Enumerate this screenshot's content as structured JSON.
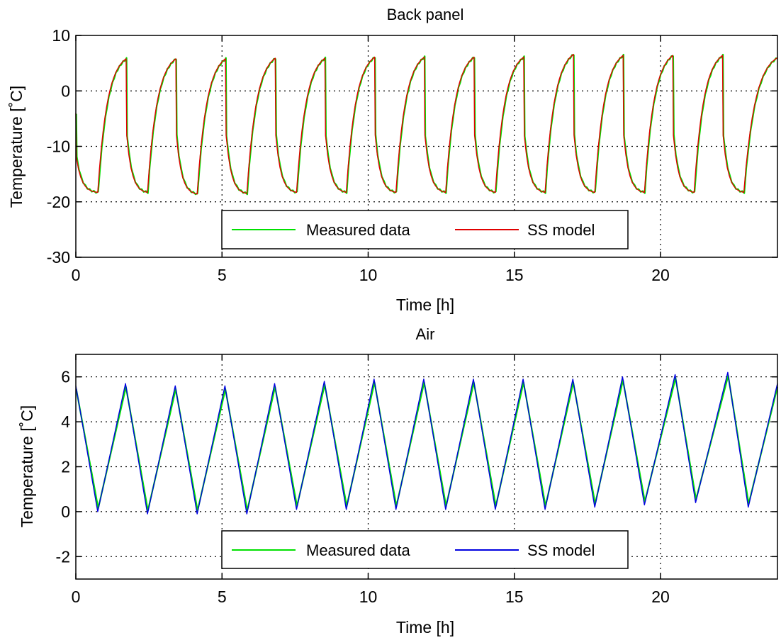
{
  "chart_data": [
    {
      "type": "line",
      "title": "Back panel",
      "xlabel": "Time [h]",
      "ylabel": "Temperature [˚C]",
      "xlim": [
        0,
        24
      ],
      "ylim": [
        -30,
        10
      ],
      "xticks": [
        "0",
        "5",
        "10",
        "15",
        "20"
      ],
      "yticks": [
        "10",
        "0",
        "-10",
        "-20",
        "-30"
      ],
      "grid": true,
      "legend_position": "bottom",
      "shape": "sawtooth",
      "period_h": 1.7,
      "start_value": -4,
      "cycles": [
        {
          "t_min": 0.75,
          "min": -18.3,
          "t_max": 1.72,
          "max": 5.8
        },
        {
          "t_min": 2.45,
          "min": -18.3,
          "t_max": 3.42,
          "max": 5.8
        },
        {
          "t_min": 4.15,
          "min": -18.6,
          "t_max": 5.12,
          "max": 5.8
        },
        {
          "t_min": 5.85,
          "min": -18.5,
          "t_max": 6.82,
          "max": 5.9
        },
        {
          "t_min": 7.55,
          "min": -18.3,
          "t_max": 8.52,
          "max": 5.9
        },
        {
          "t_min": 9.25,
          "min": -18.3,
          "t_max": 10.22,
          "max": 6.1
        },
        {
          "t_min": 10.95,
          "min": -18.3,
          "t_max": 11.92,
          "max": 6.1
        },
        {
          "t_min": 12.65,
          "min": -18.3,
          "t_max": 13.62,
          "max": 6.1
        },
        {
          "t_min": 14.35,
          "min": -18.3,
          "t_max": 15.32,
          "max": 6.1
        },
        {
          "t_min": 16.05,
          "min": -18.3,
          "t_max": 17.02,
          "max": 6.6
        },
        {
          "t_min": 17.75,
          "min": -18.3,
          "t_max": 18.72,
          "max": 6.4
        },
        {
          "t_min": 19.45,
          "min": -18.3,
          "t_max": 20.42,
          "max": 6.4
        },
        {
          "t_min": 21.15,
          "min": -18.3,
          "t_max": 22.12,
          "max": 6.4
        },
        {
          "t_min": 22.85,
          "min": -18.3,
          "t_max": 24.0,
          "max": 6.0
        }
      ],
      "series": [
        {
          "name": "Measured data",
          "color": "#00e000"
        },
        {
          "name": "SS model",
          "color": "#e00000"
        }
      ]
    },
    {
      "type": "line",
      "title": "Air",
      "xlabel": "Time [h]",
      "ylabel": "Temperature [˚C]",
      "xlim": [
        0,
        24
      ],
      "ylim": [
        -3,
        7
      ],
      "xticks": [
        "0",
        "5",
        "10",
        "15",
        "20"
      ],
      "yticks": [
        "6",
        "4",
        "2",
        "0",
        "-2"
      ],
      "grid": true,
      "legend_position": "bottom",
      "shape": "triangle",
      "period_h": 1.7,
      "start_value": 5.6,
      "peaks": [
        {
          "t_min": 0.75,
          "min": 0.0,
          "t_max": 1.7,
          "max": 5.7
        },
        {
          "t_min": 2.45,
          "min": -0.1,
          "t_max": 3.4,
          "max": 5.6
        },
        {
          "t_min": 4.15,
          "min": -0.1,
          "t_max": 5.1,
          "max": 5.6
        },
        {
          "t_min": 5.85,
          "min": -0.1,
          "t_max": 6.8,
          "max": 5.7
        },
        {
          "t_min": 7.55,
          "min": 0.1,
          "t_max": 8.5,
          "max": 5.8
        },
        {
          "t_min": 9.25,
          "min": 0.1,
          "t_max": 10.2,
          "max": 5.9
        },
        {
          "t_min": 10.95,
          "min": 0.1,
          "t_max": 11.9,
          "max": 5.9
        },
        {
          "t_min": 12.65,
          "min": 0.1,
          "t_max": 13.6,
          "max": 5.9
        },
        {
          "t_min": 14.35,
          "min": 0.1,
          "t_max": 15.3,
          "max": 5.9
        },
        {
          "t_min": 16.05,
          "min": 0.1,
          "t_max": 17.0,
          "max": 5.9
        },
        {
          "t_min": 17.75,
          "min": 0.2,
          "t_max": 18.7,
          "max": 6.0
        },
        {
          "t_min": 19.45,
          "min": 0.3,
          "t_max": 20.5,
          "max": 6.1
        },
        {
          "t_min": 21.2,
          "min": 0.4,
          "t_max": 22.3,
          "max": 6.2
        },
        {
          "t_min": 23.0,
          "min": 0.2,
          "t_max": 24.0,
          "max": 5.7
        }
      ],
      "series": [
        {
          "name": "Measured data",
          "color": "#00e000"
        },
        {
          "name": "SS model",
          "color": "#0000e0"
        }
      ]
    }
  ]
}
